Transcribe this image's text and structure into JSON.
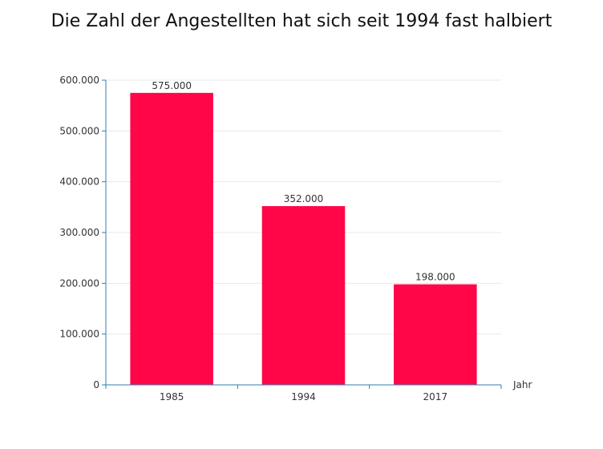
{
  "chart_data": {
    "type": "bar",
    "title": "Die Zahl der Angestellten hat sich seit 1994 fast halbiert",
    "categories": [
      "1985",
      "1994",
      "2017"
    ],
    "values": [
      575000,
      352000,
      198000
    ],
    "value_labels": [
      "575.000",
      "352.000",
      "198.000"
    ],
    "xlabel": "Jahr",
    "ylabel": "",
    "ylim": [
      0,
      600000
    ],
    "yticks": [
      0,
      100000,
      200000,
      300000,
      400000,
      500000,
      600000
    ],
    "ytick_labels": [
      "0",
      "100.000",
      "200.000",
      "300.000",
      "400.000",
      "500.000",
      "600.000"
    ],
    "grid": true,
    "legend": "none",
    "colors": {
      "bar": "#ff0648",
      "axis": "#2f7fb3",
      "grid": "#e8e8e8"
    }
  }
}
